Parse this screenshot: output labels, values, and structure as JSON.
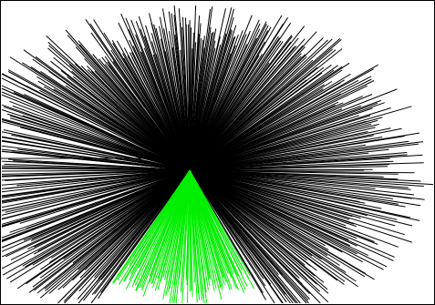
{
  "figure": {
    "kind": "radial line burst",
    "background_color": "#ffffff",
    "frame_color": "#000000"
  },
  "burst": {
    "center_label": "",
    "groups": [
      {
        "color": "#000000",
        "line_count": 520,
        "sector_from_deg": -235,
        "sector_to_deg": 60
      },
      {
        "color": "#00ee00",
        "line_count": 90,
        "sector_from_deg": 60,
        "sector_to_deg": 125
      }
    ]
  }
}
